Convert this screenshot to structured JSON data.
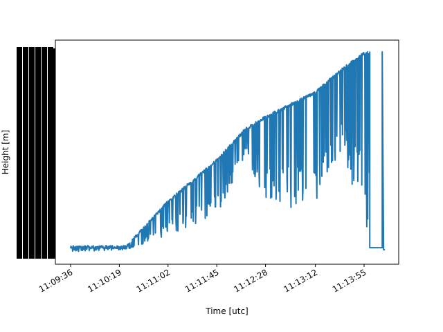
{
  "chart_data": {
    "type": "line",
    "title": "",
    "xlabel": "Time [utc]",
    "ylabel": "Height [m]",
    "xticks": [
      "11:09:36",
      "11:10:19",
      "11:11:02",
      "11:11:45",
      "11:12:28",
      "11:13:12",
      "11:13:55"
    ],
    "xlim_seconds": [
      41340,
      41680
    ],
    "ylim": [
      0,
      1
    ],
    "y_tick_labels_overlapping": true,
    "grid": false,
    "series": [
      {
        "color": "#1f77b4",
        "x_time": [
          "11:09:36",
          "11:10:25",
          "11:11:02",
          "11:11:45",
          "11:12:10",
          "11:12:28",
          "11:12:50",
          "11:13:12",
          "11:13:35",
          "11:13:55",
          "11:14:00"
        ],
        "envelope_top": [
          0.05,
          0.05,
          0.27,
          0.47,
          0.62,
          0.68,
          0.74,
          0.8,
          0.91,
          0.99,
          0.99
        ],
        "envelope_bottom": [
          0.02,
          0.03,
          0.1,
          0.2,
          0.48,
          0.25,
          0.23,
          0.23,
          0.48,
          0.2,
          0.03
        ]
      }
    ]
  }
}
